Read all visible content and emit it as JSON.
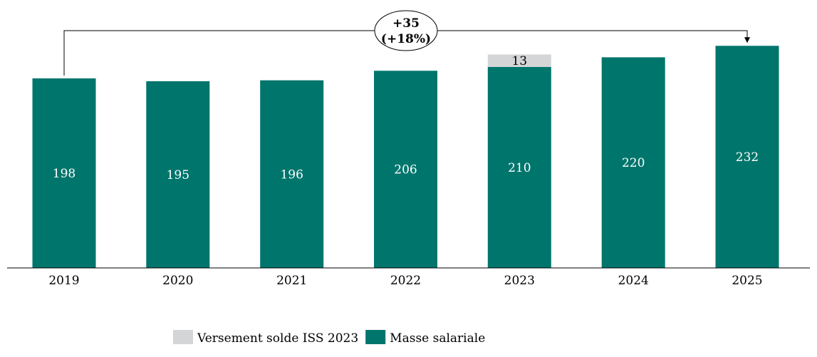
{
  "chart_data": {
    "type": "bar",
    "stacked": true,
    "categories": [
      "2019",
      "2020",
      "2021",
      "2022",
      "2023",
      "2024",
      "2025"
    ],
    "series": [
      {
        "name": "Masse salariale",
        "color": "#00756C",
        "values": [
          198,
          195,
          196,
          206,
          210,
          220,
          232
        ],
        "labels": [
          "198",
          "195",
          "196",
          "206",
          "210",
          "220",
          "232"
        ]
      },
      {
        "name": "Versement solde ISS 2023",
        "color": "#D4D5D7",
        "values": [
          0,
          0,
          0,
          0,
          13,
          0,
          0
        ],
        "labels": [
          "",
          "",
          "",
          "",
          "13",
          "",
          ""
        ]
      }
    ],
    "legend_order": [
      "Versement solde ISS 2023",
      "Masse salariale"
    ],
    "ylim": [
      0,
      240
    ],
    "title": "",
    "xlabel": "",
    "ylabel": "",
    "grid": false,
    "legend_position": "bottom-center",
    "annotation": {
      "from": "2019",
      "to": "2025",
      "line1": "+35",
      "line2": "(+18%)"
    }
  }
}
